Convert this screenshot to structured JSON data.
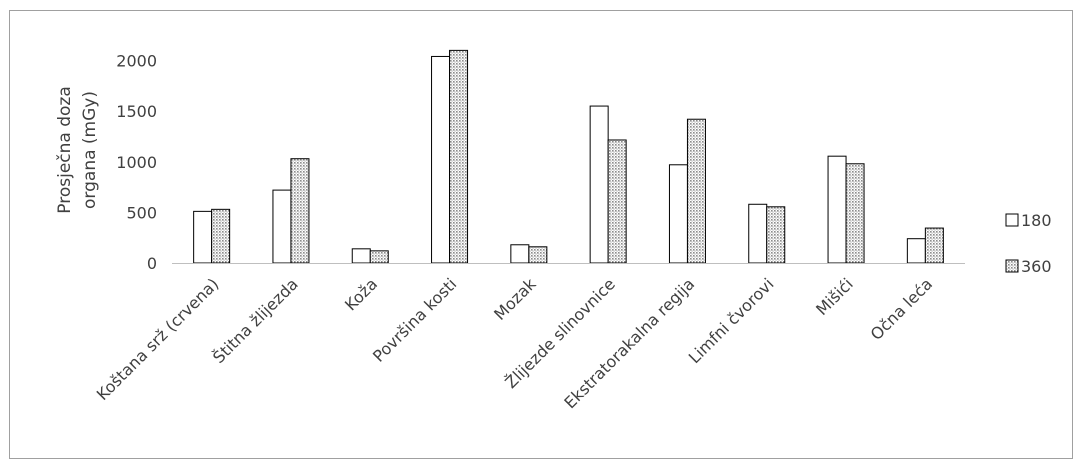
{
  "chart_data": {
    "type": "bar",
    "title": "",
    "xlabel": "",
    "ylabel": [
      "Prosječna doza",
      "organa (mGy)"
    ],
    "ylim": [
      0,
      2100
    ],
    "yticks": [
      0,
      500,
      1000,
      1500,
      2000
    ],
    "grid": false,
    "legend_position": "right",
    "categories": [
      "Koštana srž (crvena)",
      "Štitna žlijezda",
      "Koža",
      "Površina kosti",
      "Mozak",
      "Žlijezde slinovnice",
      "Ekstratorakalna regija",
      "Limfni čvorovi",
      "Mišići",
      "Očna leća"
    ],
    "series": [
      {
        "name": "180",
        "fill": "#ffffff",
        "values": [
          510,
          720,
          140,
          2040,
          180,
          1550,
          970,
          580,
          1055,
          240
        ]
      },
      {
        "name": "360",
        "fill": "dots",
        "values": [
          530,
          1030,
          120,
          2100,
          160,
          1215,
          1420,
          555,
          980,
          345
        ]
      }
    ],
    "colors": {
      "bar_stroke": "#000000",
      "axis": "#bfbfbf",
      "text": "#404040",
      "dot": "#8c8c8c"
    }
  }
}
